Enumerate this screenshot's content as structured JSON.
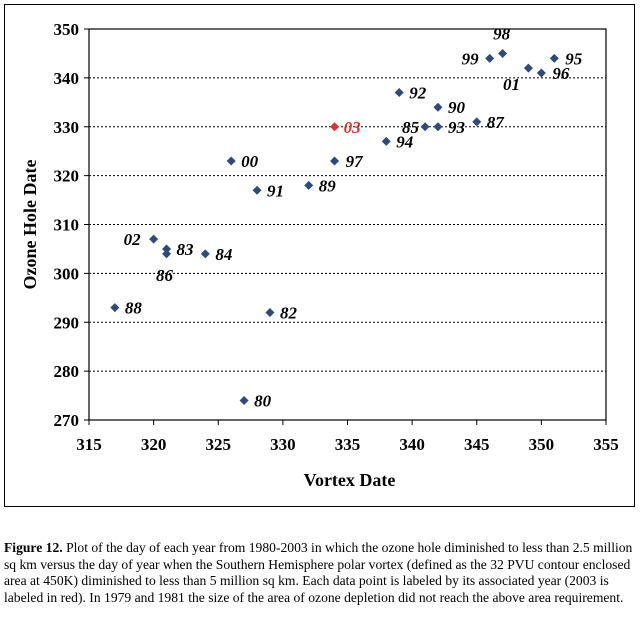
{
  "chart_data": {
    "type": "scatter",
    "xlabel": "Vortex Date",
    "ylabel": "Ozone Hole Date",
    "xlim": [
      315,
      355
    ],
    "ylim": [
      270,
      350
    ],
    "xticks": [
      315,
      320,
      325,
      330,
      335,
      340,
      345,
      350,
      355
    ],
    "yticks": [
      270,
      280,
      290,
      300,
      310,
      320,
      330,
      340,
      350
    ],
    "grid": "horizontal dotted",
    "marker_color": "#2e4a7d",
    "highlight_color": "#e03030",
    "points": [
      {
        "label": "80",
        "x": 327,
        "y": 274
      },
      {
        "label": "82",
        "x": 329,
        "y": 292
      },
      {
        "label": "83",
        "x": 321,
        "y": 305
      },
      {
        "label": "84",
        "x": 324,
        "y": 304
      },
      {
        "label": "85",
        "x": 341,
        "y": 330
      },
      {
        "label": "86",
        "x": 321,
        "y": 304
      },
      {
        "label": "87",
        "x": 345,
        "y": 331
      },
      {
        "label": "88",
        "x": 317,
        "y": 293
      },
      {
        "label": "89",
        "x": 332,
        "y": 318
      },
      {
        "label": "90",
        "x": 342,
        "y": 334
      },
      {
        "label": "91",
        "x": 328,
        "y": 317
      },
      {
        "label": "92",
        "x": 339,
        "y": 337
      },
      {
        "label": "93",
        "x": 342,
        "y": 330
      },
      {
        "label": "94",
        "x": 338,
        "y": 327
      },
      {
        "label": "95",
        "x": 351,
        "y": 344
      },
      {
        "label": "96",
        "x": 350,
        "y": 341
      },
      {
        "label": "97",
        "x": 334,
        "y": 323
      },
      {
        "label": "98",
        "x": 347,
        "y": 345
      },
      {
        "label": "99",
        "x": 346,
        "y": 344
      },
      {
        "label": "00",
        "x": 326,
        "y": 323
      },
      {
        "label": "01",
        "x": 349,
        "y": 342
      },
      {
        "label": "02",
        "x": 320,
        "y": 307
      },
      {
        "label": "03",
        "x": 334,
        "y": 330,
        "highlight": true
      }
    ]
  },
  "caption": {
    "lead": "Figure 12.",
    "text": "Plot of the day of each year from 1980-2003 in which the ozone hole diminished to less than 2.5 million sq km versus the day of year when the Southern Hemisphere polar vortex (defined as the 32 PVU contour enclosed area at 450K) diminished to less than 5 million sq km. Each data point is labeled by its associated year (2003 is labeled in red).  In 1979 and 1981 the size of the area of ozone depletion did not reach the above area requirement."
  }
}
